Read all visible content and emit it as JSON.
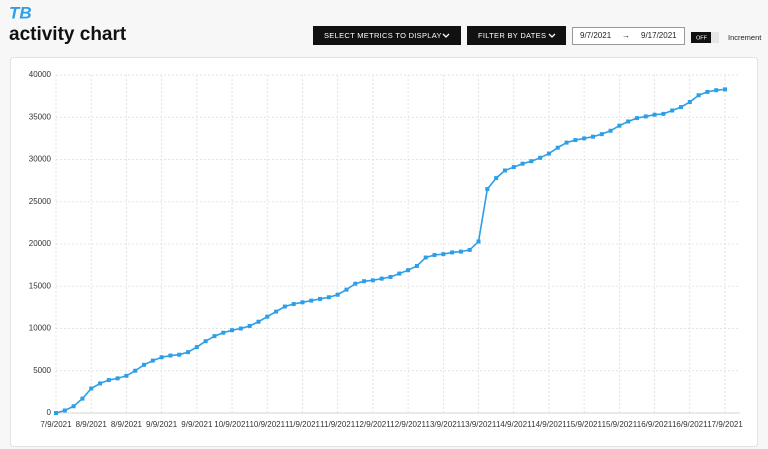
{
  "header": {
    "logo": "TB",
    "metrics_button": "SELECT METRICS TO DISPLAY",
    "dates_button": "FILTER BY DATES",
    "date_start": "9/7/2021",
    "date_arrow": "→",
    "date_end": "9/17/2021",
    "toggle": "OFF",
    "toggle_label": "Increment"
  },
  "chart_data": {
    "type": "line",
    "title": "activity chart",
    "color": "#2d9fe9",
    "grid": true,
    "categories": [
      "7/9/2021",
      null,
      null,
      null,
      "8/9/2021",
      null,
      null,
      null,
      "8/9/2021",
      null,
      null,
      null,
      "9/9/2021",
      null,
      null,
      null,
      "9/9/2021",
      null,
      null,
      null,
      "10/9/2021",
      null,
      null,
      null,
      "10/9/2021",
      null,
      null,
      null,
      "11/9/2021",
      null,
      null,
      null,
      "11/9/2021",
      null,
      null,
      null,
      "12/9/2021",
      null,
      null,
      null,
      "12/9/2021",
      null,
      null,
      null,
      "13/9/2021",
      null,
      null,
      null,
      "13/9/2021",
      null,
      null,
      null,
      "14/9/2021",
      null,
      null,
      null,
      "14/9/2021",
      null,
      null,
      null,
      "15/9/2021",
      null,
      null,
      null,
      "15/9/2021",
      null,
      null,
      null,
      "16/9/2021",
      null,
      null,
      null,
      "16/9/2021",
      null,
      null,
      null,
      "17/9/2021"
    ],
    "values": [
      0,
      300,
      800,
      1700,
      2900,
      3500,
      3900,
      4100,
      4400,
      5000,
      5700,
      6200,
      6600,
      6800,
      6900,
      7200,
      7800,
      8500,
      9100,
      9500,
      9800,
      10000,
      10300,
      10800,
      11400,
      12000,
      12600,
      12900,
      13100,
      13300,
      13500,
      13700,
      14000,
      14600,
      15300,
      15600,
      15700,
      15900,
      16100,
      16500,
      16900,
      17400,
      18400,
      18700,
      18800,
      19000,
      19100,
      19300,
      20300,
      26500,
      27800,
      28700,
      29100,
      29500,
      29800,
      30200,
      30700,
      31400,
      32000,
      32300,
      32500,
      32700,
      33000,
      33400,
      34000,
      34500,
      34900,
      35100,
      35300,
      35400,
      35800,
      36200,
      36800,
      37600,
      38000,
      38200,
      38300
    ],
    "ylim": [
      0,
      40000
    ],
    "yticks": [
      0,
      5000,
      10000,
      15000,
      20000,
      25000,
      30000,
      35000,
      40000
    ]
  }
}
